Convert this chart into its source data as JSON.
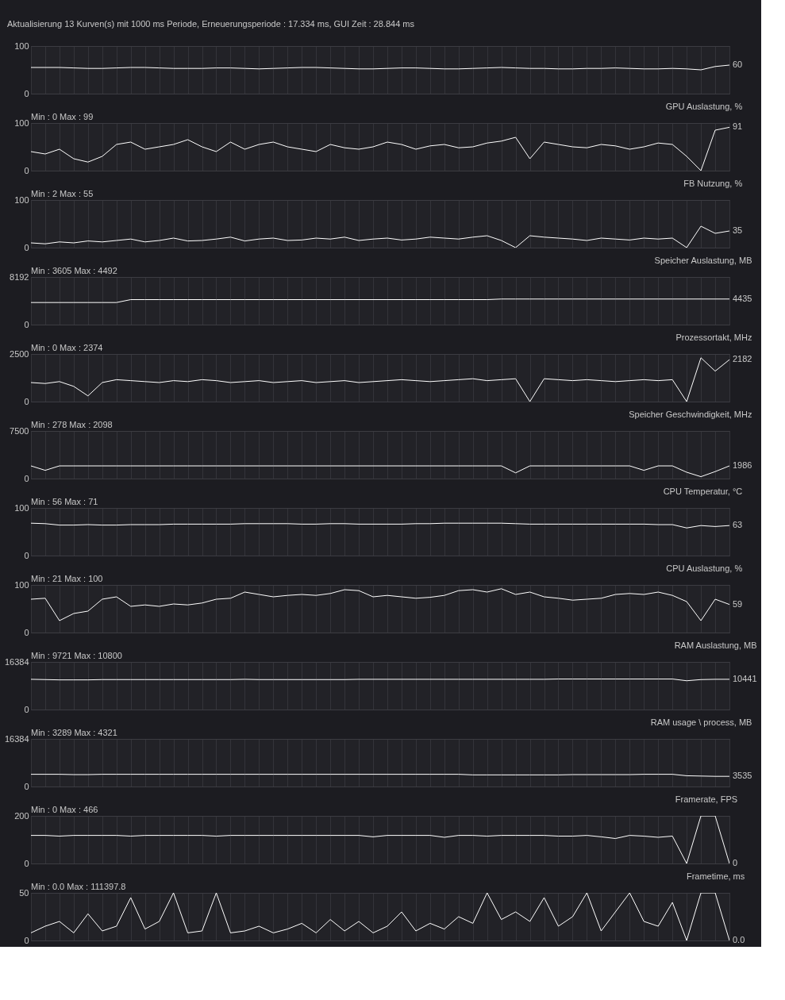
{
  "chart_data": [
    {
      "type": "line",
      "annotations": [
        "Aktualisierung 13 Kurven(s) mit 1000 ms Periode, Erneuerungsperiode : 17.334 ms, GUI Zeit : 28.844 ms",
        "60"
      ],
      "color": "#ffffff",
      "ylim": [
        0,
        100
      ],
      "yticks": [
        0,
        100
      ],
      "grid": true,
      "tick_labels": "y",
      "categories": [
        null,
        null,
        null,
        null,
        null,
        null,
        null,
        null,
        null,
        null,
        null,
        null,
        null,
        null,
        null,
        null,
        null,
        null,
        null,
        null,
        null,
        null,
        null,
        null,
        null,
        null,
        null,
        null,
        null,
        null,
        null,
        null,
        null,
        null,
        null,
        null,
        null,
        null,
        null,
        null,
        null,
        null,
        null,
        null,
        null,
        null,
        null,
        null,
        null,
        null
      ],
      "values": [
        55,
        55,
        55,
        54,
        53,
        53,
        54,
        55,
        55,
        54,
        53,
        53,
        53,
        54,
        54,
        53,
        52,
        53,
        54,
        55,
        55,
        54,
        53,
        52,
        52,
        53,
        54,
        54,
        53,
        52,
        52,
        53,
        54,
        55,
        54,
        53,
        53,
        52,
        52,
        53,
        53,
        54,
        53,
        52,
        52,
        53,
        52,
        50,
        57,
        60
      ]
    },
    {
      "type": "line",
      "title": "GPU Auslastung, %",
      "subtitle": "Min : 0   Max : 99",
      "annotations": [
        "91"
      ],
      "color": "#ffffff",
      "ylim": [
        0,
        100
      ],
      "yticks": [
        0,
        100
      ],
      "grid": true,
      "tick_labels": "y",
      "categories": [
        null,
        null,
        null,
        null,
        null,
        null,
        null,
        null,
        null,
        null,
        null,
        null,
        null,
        null,
        null,
        null,
        null,
        null,
        null,
        null,
        null,
        null,
        null,
        null,
        null,
        null,
        null,
        null,
        null,
        null,
        null,
        null,
        null,
        null,
        null,
        null,
        null,
        null,
        null,
        null,
        null,
        null,
        null,
        null,
        null,
        null,
        null,
        null,
        null,
        null
      ],
      "values": [
        40,
        35,
        45,
        25,
        18,
        30,
        55,
        60,
        45,
        50,
        55,
        65,
        50,
        40,
        60,
        45,
        55,
        60,
        50,
        45,
        40,
        55,
        48,
        45,
        50,
        60,
        55,
        45,
        52,
        55,
        48,
        50,
        58,
        62,
        70,
        25,
        60,
        55,
        50,
        48,
        55,
        52,
        45,
        50,
        58,
        55,
        30,
        0,
        85,
        91
      ]
    },
    {
      "type": "line",
      "title": "FB Nutzung, %",
      "subtitle": "Min : 2   Max : 55",
      "annotations": [
        "35"
      ],
      "color": "#ffffff",
      "ylim": [
        0,
        100
      ],
      "yticks": [
        0,
        100
      ],
      "grid": true,
      "tick_labels": "y",
      "categories": [
        null,
        null,
        null,
        null,
        null,
        null,
        null,
        null,
        null,
        null,
        null,
        null,
        null,
        null,
        null,
        null,
        null,
        null,
        null,
        null,
        null,
        null,
        null,
        null,
        null,
        null,
        null,
        null,
        null,
        null,
        null,
        null,
        null,
        null,
        null,
        null,
        null,
        null,
        null,
        null,
        null,
        null,
        null,
        null,
        null,
        null,
        null,
        null,
        null,
        null
      ],
      "values": [
        10,
        8,
        12,
        10,
        14,
        12,
        15,
        18,
        12,
        15,
        20,
        14,
        15,
        18,
        22,
        14,
        18,
        20,
        15,
        16,
        20,
        18,
        22,
        15,
        18,
        20,
        16,
        18,
        22,
        20,
        18,
        22,
        25,
        15,
        0,
        25,
        22,
        20,
        18,
        15,
        20,
        18,
        16,
        20,
        18,
        20,
        0,
        45,
        30,
        35
      ]
    },
    {
      "type": "line",
      "title": "Speicher Auslastung, MB",
      "subtitle": "Min : 3605   Max : 4492",
      "annotations": [
        "4435"
      ],
      "color": "#ffffff",
      "ylim": [
        0,
        8192
      ],
      "yticks": [
        0,
        {
          "value": 8192,
          "label": "8192"
        }
      ],
      "grid": true,
      "tick_labels": "y",
      "categories": [
        null,
        null,
        null,
        null,
        null,
        null,
        null,
        null,
        null,
        null,
        null,
        null,
        null,
        null,
        null,
        null,
        null,
        null,
        null,
        null,
        null,
        null,
        null,
        null,
        null,
        null,
        null,
        null,
        null,
        null,
        null,
        null,
        null,
        null,
        null,
        null,
        null,
        null,
        null,
        null,
        null,
        null,
        null,
        null,
        null,
        null,
        null,
        null,
        null,
        null
      ],
      "values": [
        3800,
        3800,
        3800,
        3800,
        3800,
        3800,
        3800,
        4300,
        4300,
        4300,
        4300,
        4300,
        4300,
        4300,
        4300,
        4300,
        4300,
        4300,
        4300,
        4300,
        4300,
        4300,
        4300,
        4300,
        4300,
        4300,
        4300,
        4300,
        4300,
        4300,
        4300,
        4300,
        4300,
        4400,
        4400,
        4400,
        4400,
        4400,
        4400,
        4400,
        4400,
        4400,
        4400,
        4400,
        4400,
        4400,
        4400,
        4400,
        4400,
        4400
      ]
    },
    {
      "type": "line",
      "title": "Prozessortakt, MHz",
      "subtitle": "Min : 0   Max : 2374",
      "annotations": [
        "2182"
      ],
      "color": "#ffffff",
      "ylim": [
        0,
        2500
      ],
      "yticks": [
        0,
        {
          "value": 2500,
          "label": "2500"
        }
      ],
      "grid": true,
      "tick_labels": "y",
      "categories": [
        null,
        null,
        null,
        null,
        null,
        null,
        null,
        null,
        null,
        null,
        null,
        null,
        null,
        null,
        null,
        null,
        null,
        null,
        null,
        null,
        null,
        null,
        null,
        null,
        null,
        null,
        null,
        null,
        null,
        null,
        null,
        null,
        null,
        null,
        null,
        null,
        null,
        null,
        null,
        null,
        null,
        null,
        null,
        null,
        null,
        null,
        null,
        null,
        null,
        null
      ],
      "values": [
        1000,
        950,
        1050,
        800,
        300,
        1000,
        1150,
        1100,
        1050,
        1000,
        1100,
        1050,
        1150,
        1100,
        1000,
        1050,
        1100,
        1000,
        1050,
        1100,
        1000,
        1050,
        1100,
        1000,
        1050,
        1100,
        1150,
        1100,
        1050,
        1100,
        1150,
        1200,
        1100,
        1150,
        1200,
        0,
        1200,
        1150,
        1100,
        1150,
        1100,
        1050,
        1100,
        1150,
        1100,
        1150,
        0,
        2300,
        1600,
        2200
      ]
    },
    {
      "type": "line",
      "title": "Speicher Geschwindigkeit, MHz",
      "subtitle": "Min : 278   Max : 2098",
      "annotations": [
        "1986"
      ],
      "color": "#ffffff",
      "ylim": [
        0,
        7500
      ],
      "yticks": [
        0,
        {
          "value": 7500,
          "label": "7500"
        }
      ],
      "grid": true,
      "tick_labels": "y",
      "categories": [
        null,
        null,
        null,
        null,
        null,
        null,
        null,
        null,
        null,
        null,
        null,
        null,
        null,
        null,
        null,
        null,
        null,
        null,
        null,
        null,
        null,
        null,
        null,
        null,
        null,
        null,
        null,
        null,
        null,
        null,
        null,
        null,
        null,
        null,
        null,
        null,
        null,
        null,
        null,
        null,
        null,
        null,
        null,
        null,
        null,
        null,
        null,
        null,
        null,
        null
      ],
      "values": [
        2000,
        1300,
        2000,
        2000,
        2000,
        2000,
        2000,
        2000,
        2000,
        2000,
        2000,
        2000,
        2000,
        2000,
        2000,
        2000,
        2000,
        2000,
        2000,
        2000,
        2000,
        2000,
        2000,
        2000,
        2000,
        2000,
        2000,
        2000,
        2000,
        2000,
        2000,
        2000,
        2000,
        2000,
        900,
        2000,
        2000,
        2000,
        2000,
        2000,
        2000,
        2000,
        2000,
        1300,
        2000,
        2000,
        1000,
        300,
        1100,
        2000
      ]
    },
    {
      "type": "line",
      "title": "CPU Temperatur, °C",
      "subtitle": "Min : 56   Max : 71",
      "annotations": [
        "63"
      ],
      "color": "#ffffff",
      "ylim": [
        0,
        100
      ],
      "yticks": [
        0,
        100
      ],
      "grid": true,
      "tick_labels": "y",
      "categories": [
        null,
        null,
        null,
        null,
        null,
        null,
        null,
        null,
        null,
        null,
        null,
        null,
        null,
        null,
        null,
        null,
        null,
        null,
        null,
        null,
        null,
        null,
        null,
        null,
        null,
        null,
        null,
        null,
        null,
        null,
        null,
        null,
        null,
        null,
        null,
        null,
        null,
        null,
        null,
        null,
        null,
        null,
        null,
        null,
        null,
        null,
        null,
        null,
        null,
        null
      ],
      "values": [
        68,
        67,
        64,
        64,
        65,
        64,
        64,
        65,
        65,
        65,
        66,
        66,
        66,
        66,
        66,
        67,
        67,
        67,
        67,
        66,
        66,
        67,
        67,
        66,
        66,
        66,
        66,
        67,
        67,
        68,
        68,
        68,
        68,
        68,
        67,
        66,
        66,
        66,
        66,
        66,
        66,
        66,
        66,
        66,
        65,
        65,
        58,
        63,
        61,
        63
      ]
    },
    {
      "type": "line",
      "title": "CPU Auslastung, %",
      "subtitle": "Min : 21   Max : 100",
      "annotations": [
        "59"
      ],
      "color": "#ffffff",
      "ylim": [
        0,
        100
      ],
      "yticks": [
        0,
        100
      ],
      "grid": true,
      "tick_labels": "y",
      "categories": [
        null,
        null,
        null,
        null,
        null,
        null,
        null,
        null,
        null,
        null,
        null,
        null,
        null,
        null,
        null,
        null,
        null,
        null,
        null,
        null,
        null,
        null,
        null,
        null,
        null,
        null,
        null,
        null,
        null,
        null,
        null,
        null,
        null,
        null,
        null,
        null,
        null,
        null,
        null,
        null,
        null,
        null,
        null,
        null,
        null,
        null,
        null,
        null,
        null,
        null
      ],
      "values": [
        70,
        72,
        25,
        40,
        45,
        70,
        75,
        55,
        58,
        55,
        60,
        58,
        62,
        70,
        72,
        85,
        80,
        75,
        78,
        80,
        78,
        82,
        90,
        88,
        75,
        78,
        75,
        72,
        74,
        78,
        88,
        90,
        85,
        92,
        80,
        85,
        75,
        72,
        68,
        70,
        72,
        80,
        82,
        80,
        85,
        78,
        65,
        25,
        70,
        59
      ]
    },
    {
      "type": "line",
      "title": "RAM Auslastung, MB",
      "subtitle": "Min : 9721   Max : 10800",
      "annotations": [
        "10441"
      ],
      "color": "#ffffff",
      "ylim": [
        0,
        16384
      ],
      "yticks": [
        0,
        {
          "value": 16384,
          "label": "16384"
        }
      ],
      "grid": true,
      "tick_labels": "y",
      "categories": [
        null,
        null,
        null,
        null,
        null,
        null,
        null,
        null,
        null,
        null,
        null,
        null,
        null,
        null,
        null,
        null,
        null,
        null,
        null,
        null,
        null,
        null,
        null,
        null,
        null,
        null,
        null,
        null,
        null,
        null,
        null,
        null,
        null,
        null,
        null,
        null,
        null,
        null,
        null,
        null,
        null,
        null,
        null,
        null,
        null,
        null,
        null,
        null,
        null,
        null
      ],
      "values": [
        10400,
        10300,
        10200,
        10200,
        10200,
        10300,
        10300,
        10300,
        10300,
        10300,
        10300,
        10300,
        10300,
        10300,
        10300,
        10400,
        10300,
        10300,
        10300,
        10300,
        10300,
        10300,
        10300,
        10400,
        10400,
        10400,
        10400,
        10400,
        10400,
        10400,
        10400,
        10400,
        10400,
        10400,
        10400,
        10400,
        10400,
        10500,
        10500,
        10500,
        10500,
        10500,
        10500,
        10500,
        10500,
        10500,
        9900,
        10300,
        10400,
        10400
      ]
    },
    {
      "type": "line",
      "title": "RAM usage \\ process, MB",
      "subtitle": "Min : 3289   Max : 4321",
      "annotations": [
        "3535"
      ],
      "color": "#ffffff",
      "ylim": [
        0,
        16384
      ],
      "yticks": [
        0,
        {
          "value": 16384,
          "label": "16384"
        }
      ],
      "grid": true,
      "tick_labels": "y",
      "categories": [
        null,
        null,
        null,
        null,
        null,
        null,
        null,
        null,
        null,
        null,
        null,
        null,
        null,
        null,
        null,
        null,
        null,
        null,
        null,
        null,
        null,
        null,
        null,
        null,
        null,
        null,
        null,
        null,
        null,
        null,
        null,
        null,
        null,
        null,
        null,
        null,
        null,
        null,
        null,
        null,
        null,
        null,
        null,
        null,
        null,
        null,
        null,
        null,
        null,
        null
      ],
      "values": [
        4200,
        4200,
        4200,
        4100,
        4100,
        4200,
        4200,
        4200,
        4200,
        4200,
        4200,
        4200,
        4200,
        4200,
        4200,
        4200,
        4200,
        4200,
        4200,
        4200,
        4200,
        4200,
        4200,
        4200,
        4200,
        4200,
        4200,
        4200,
        4200,
        4200,
        4200,
        4000,
        4000,
        4000,
        4000,
        4000,
        4000,
        4000,
        4100,
        4100,
        4100,
        4100,
        4100,
        4200,
        4200,
        4200,
        3700,
        3600,
        3500,
        3500
      ]
    },
    {
      "type": "line",
      "title": "Framerate, FPS",
      "subtitle": "Min : 0   Max : 466",
      "annotations": [
        "0"
      ],
      "color": "#ffffff",
      "ylim": [
        0,
        200
      ],
      "yticks": [
        0,
        200
      ],
      "grid": true,
      "tick_labels": "y",
      "categories": [
        null,
        null,
        null,
        null,
        null,
        null,
        null,
        null,
        null,
        null,
        null,
        null,
        null,
        null,
        null,
        null,
        null,
        null,
        null,
        null,
        null,
        null,
        null,
        null,
        null,
        null,
        null,
        null,
        null,
        null,
        null,
        null,
        null,
        null,
        null,
        null,
        null,
        null,
        null,
        null,
        null,
        null,
        null,
        null,
        null,
        null,
        null,
        null,
        null,
        null
      ],
      "values": [
        118,
        118,
        115,
        118,
        118,
        118,
        118,
        115,
        118,
        118,
        118,
        118,
        118,
        115,
        118,
        118,
        118,
        118,
        118,
        118,
        118,
        118,
        118,
        118,
        112,
        118,
        118,
        118,
        118,
        110,
        118,
        118,
        115,
        118,
        118,
        118,
        118,
        115,
        115,
        118,
        112,
        105,
        118,
        115,
        110,
        115,
        0,
        200,
        200,
        0
      ]
    },
    {
      "type": "line",
      "title": "Frametime, ms",
      "subtitle": "Min : 0.0   Max : 111397.8",
      "annotations": [
        "0.0"
      ],
      "color": "#ffffff",
      "ylim": [
        0,
        50
      ],
      "yticks": [
        0,
        50
      ],
      "grid": true,
      "tick_labels": "y",
      "categories": [
        null,
        null,
        null,
        null,
        null,
        null,
        null,
        null,
        null,
        null,
        null,
        null,
        null,
        null,
        null,
        null,
        null,
        null,
        null,
        null,
        null,
        null,
        null,
        null,
        null,
        null,
        null,
        null,
        null,
        null,
        null,
        null,
        null,
        null,
        null,
        null,
        null,
        null,
        null,
        null,
        null,
        null,
        null,
        null,
        null,
        null,
        null,
        null,
        null,
        null
      ],
      "values": [
        8,
        15,
        20,
        8,
        28,
        10,
        15,
        45,
        12,
        20,
        50,
        8,
        10,
        50,
        8,
        10,
        15,
        8,
        12,
        18,
        8,
        22,
        10,
        20,
        8,
        15,
        30,
        10,
        18,
        12,
        25,
        18,
        50,
        22,
        30,
        20,
        45,
        15,
        25,
        50,
        10,
        30,
        50,
        20,
        15,
        40,
        0,
        50,
        50,
        0
      ]
    }
  ]
}
